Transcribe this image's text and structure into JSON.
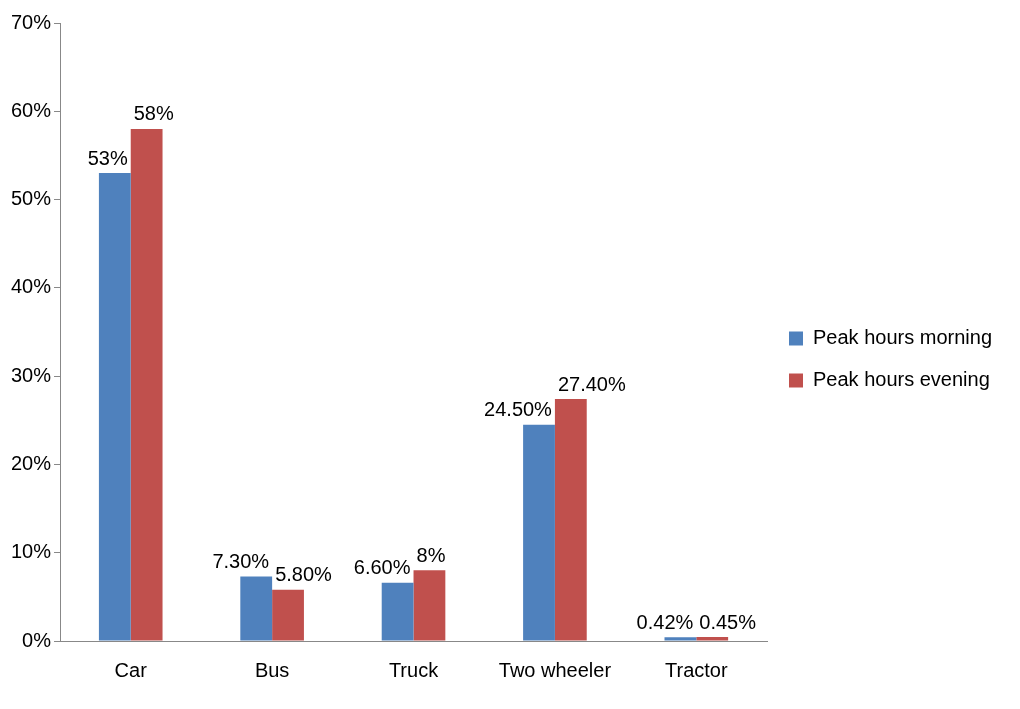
{
  "chart_data": {
    "type": "bar",
    "categories": [
      "Car",
      "Bus",
      "Truck",
      "Two wheeler",
      "Tractor"
    ],
    "series": [
      {
        "name": "Peak hours morning",
        "color": "#4f81bd",
        "values": [
          53,
          7.3,
          6.6,
          24.5,
          0.42
        ],
        "value_labels": [
          "53%",
          "7.30%",
          "6.60%",
          "24.50%",
          "0.42%"
        ]
      },
      {
        "name": "Peak hours evening",
        "color": "#c0504d",
        "values": [
          58,
          5.8,
          8,
          27.4,
          0.45
        ],
        "value_labels": [
          "58%",
          "5.80%",
          "8%",
          "27.40%",
          "0.45%"
        ]
      }
    ],
    "ylim": [
      0,
      70
    ],
    "yticks": [
      {
        "value": 0,
        "label": "0%"
      },
      {
        "value": 10,
        "label": "10%"
      },
      {
        "value": 20,
        "label": "20%"
      },
      {
        "value": 30,
        "label": "30%"
      },
      {
        "value": 40,
        "label": "40%"
      },
      {
        "value": 50,
        "label": "50%"
      },
      {
        "value": 60,
        "label": "60%"
      },
      {
        "value": 70,
        "label": "70%"
      }
    ],
    "grid": false,
    "legend": "right"
  }
}
